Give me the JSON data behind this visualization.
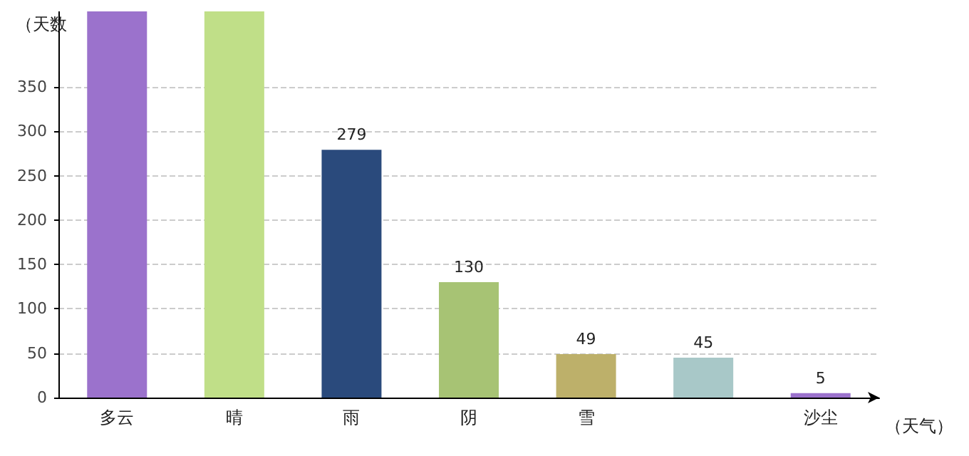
{
  "chart_data": {
    "type": "bar",
    "ylabel": "（天数",
    "xlabel": "（天气）",
    "categories": [
      "多云",
      "晴",
      "雨",
      "阴",
      "雪",
      null,
      "沙尘"
    ],
    "values": [
      435,
      435,
      279,
      130,
      49,
      45,
      5
    ],
    "colors": [
      "#9b72cc",
      "#c0df88",
      "#2a4a7c",
      "#a7c374",
      "#bdb06a",
      "#a8c8c8",
      "#9b72cc"
    ],
    "value_labels": [
      null,
      null,
      "279",
      "130",
      "49",
      "45",
      "5"
    ],
    "ylim": [
      0,
      435
    ],
    "yticks": [
      0,
      50,
      100,
      150,
      200,
      250,
      300,
      350
    ],
    "grid": "y"
  }
}
